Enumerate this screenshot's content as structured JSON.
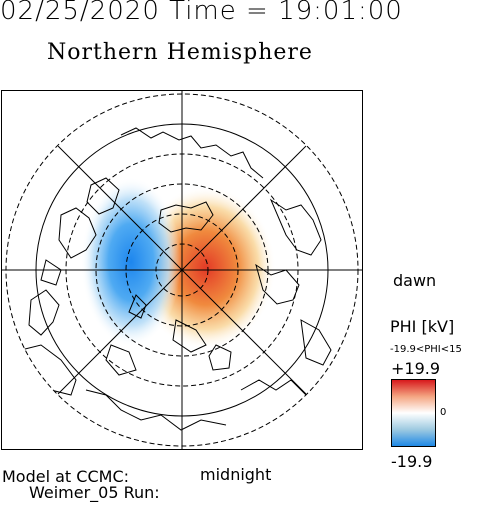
{
  "header": {
    "datetime": "02/25/2020 Time = 19:01:00",
    "title": "Northern Hemisphere"
  },
  "map": {
    "dawn_label": "dawn",
    "midnight_label": "midnight",
    "negative_cell_color": "#2f8ff0",
    "positive_cell_color": "#e64a2a"
  },
  "colorbar": {
    "label": "PHI [kV]",
    "range_text": "-19.9<PHI<15",
    "max_label": "+19.9",
    "mid_label": "0",
    "min_label": "-19.9",
    "color_max": "#d7191c",
    "color_mid": "#ffffff",
    "color_min": "#1e88e5"
  },
  "footer": {
    "model_line": "Model at CCMC:",
    "run_line": "Weimer_05 Run:"
  }
}
